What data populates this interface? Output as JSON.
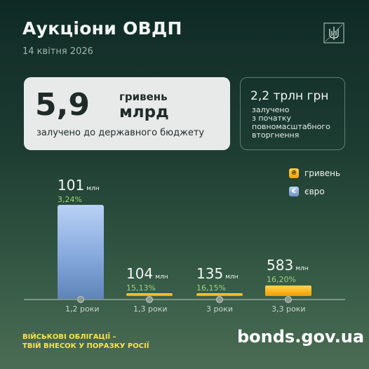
{
  "header": {
    "title": "Аукціони ОВДП",
    "date": "14 квітня 2026"
  },
  "main_card": {
    "number": "5,9",
    "unit": "гривень",
    "scale": "млрд",
    "description": "залучено до державного бюджету"
  },
  "side_card": {
    "value": "2,2 трлн грн",
    "description_lines": [
      "залучено",
      "з початку",
      "повномасштабного",
      "вторгнення"
    ]
  },
  "legend": [
    {
      "symbol": "₴",
      "label": "гривень",
      "color": "#f7b500"
    },
    {
      "symbol": "€",
      "label": "євро",
      "color": "#7a9fd6"
    }
  ],
  "chart_data": {
    "type": "bar",
    "categories": [
      "1,2 роки",
      "1,3 роки",
      "3 роки",
      "3,3 роки"
    ],
    "series": [
      {
        "currency": "євро",
        "values": [
          101,
          null,
          null,
          null
        ],
        "labels": [
          "101",
          "",
          "",
          ""
        ],
        "shares": [
          "3,24%",
          "",
          "",
          ""
        ]
      },
      {
        "currency": "гривень",
        "values": [
          null,
          104,
          135,
          583
        ],
        "labels": [
          "",
          "104",
          "135",
          "583"
        ],
        "shares": [
          "",
          "15,13%",
          "16,15%",
          "16,20%"
        ]
      }
    ],
    "unit": "млн",
    "bar_heights_relative": [
      1.0,
      0.03,
      0.03,
      0.11
    ]
  },
  "footer": {
    "slogan_line1": "ВІЙСЬКОВІ ОБЛІГАЦІЇ –",
    "slogan_line2": "ТВІЙ ВНЕСОК У ПОРАЗКУ РОСІЇ",
    "site": "bonds.gov.ua"
  }
}
